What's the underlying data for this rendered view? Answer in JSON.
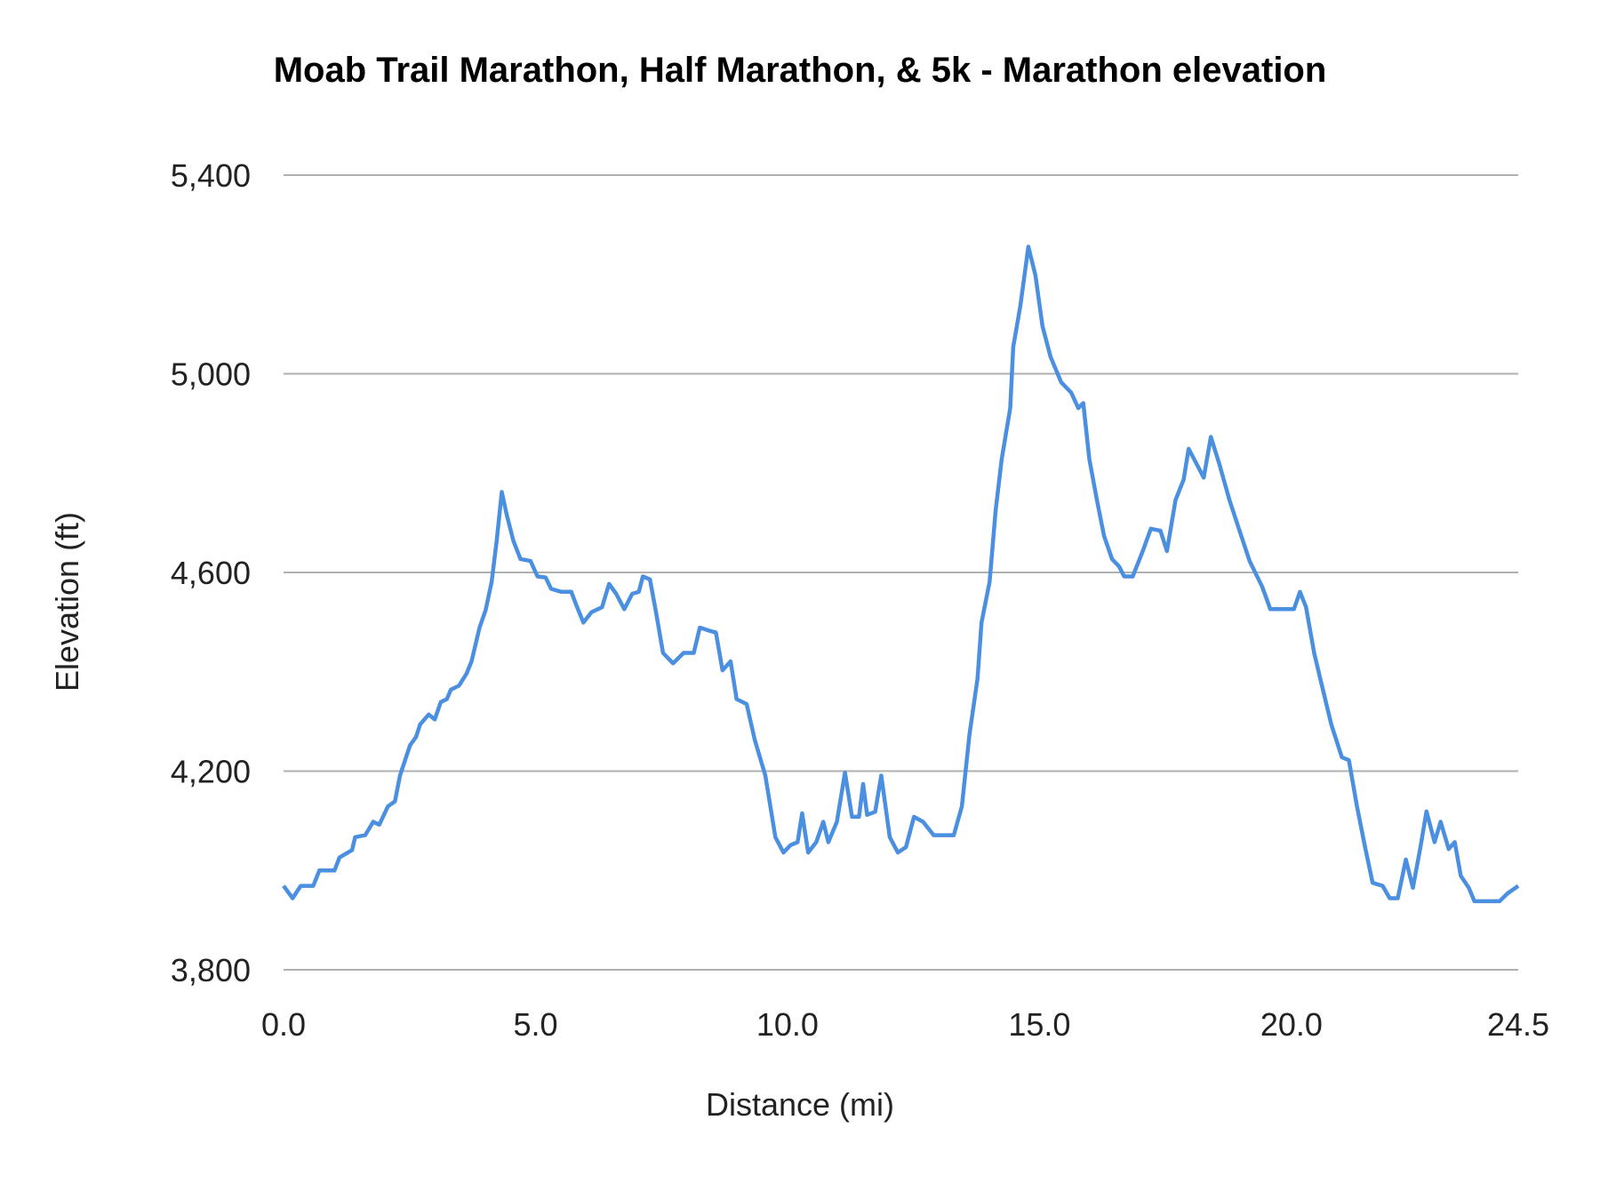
{
  "chart_data": {
    "type": "line",
    "title": "Moab Trail Marathon, Half Marathon, & 5k - Marathon elevation",
    "xlabel": "Distance (mi)",
    "ylabel": "Elevation (ft)",
    "xlim": [
      0,
      24.5
    ],
    "ylim": [
      3800,
      5400
    ],
    "x_ticks": [
      "0.0",
      "5.0",
      "10.0",
      "15.0",
      "20.0",
      "24.5"
    ],
    "x_tick_values": [
      0,
      5,
      10,
      15,
      20,
      24.5
    ],
    "y_ticks": [
      "3,800",
      "4,200",
      "4,600",
      "5,000",
      "5,400"
    ],
    "y_tick_values": [
      3800,
      4200,
      4600,
      5000,
      5400
    ],
    "grid": "horizontal",
    "legend": "none",
    "line_color": "#4a8fe0",
    "series": [
      {
        "x": [
          0,
          0.18,
          0.34,
          0.59,
          0.71,
          1.01,
          1.11,
          1.36,
          1.42,
          1.62,
          1.78,
          1.9,
          2.07,
          2.21,
          2.31,
          2.51,
          2.63,
          2.71,
          2.88,
          3.0,
          3.12,
          3.24,
          3.32,
          3.48,
          3.63,
          3.73,
          3.89,
          4.01,
          4.13,
          4.23,
          4.33,
          4.43,
          4.56,
          4.7,
          4.9,
          5.04,
          5.2,
          5.31,
          5.51,
          5.71,
          5.81,
          5.95,
          6.11,
          6.32,
          6.46,
          6.6,
          6.76,
          6.92,
          7.05,
          7.13,
          7.27,
          7.39,
          7.53,
          7.73,
          7.94,
          8.14,
          8.26,
          8.44,
          8.58,
          8.71,
          8.87,
          8.99,
          9.19,
          9.35,
          9.56,
          9.76,
          9.92,
          10.06,
          10.2,
          10.29,
          10.41,
          10.57,
          10.71,
          10.81,
          10.98,
          11.14,
          11.28,
          11.42,
          11.5,
          11.58,
          11.74,
          11.86,
          12.03,
          12.19,
          12.35,
          12.51,
          12.69,
          12.9,
          13.3,
          13.46,
          13.61,
          13.77,
          13.85,
          14.01,
          14.13,
          14.25,
          14.42,
          14.48,
          14.62,
          14.78,
          14.92,
          15.06,
          15.22,
          15.43,
          15.63,
          15.77,
          15.87,
          15.99,
          16.14,
          16.28,
          16.44,
          16.58,
          16.68,
          16.85,
          17.05,
          17.21,
          17.4,
          17.53,
          17.7,
          17.86,
          17.96,
          18.1,
          18.26,
          18.4,
          18.57,
          18.77,
          18.97,
          19.17,
          19.42,
          19.58,
          20.05,
          20.17,
          20.29,
          20.45,
          20.62,
          20.79,
          21.0,
          21.14,
          21.3,
          21.46,
          21.61,
          21.81,
          21.95,
          22.11,
          22.27,
          22.41,
          22.56,
          22.68,
          22.84,
          22.96,
          23.12,
          23.24,
          23.36,
          23.52,
          23.63,
          24.13,
          24.29,
          24.5
        ],
        "y": [
          3969,
          3944,
          3969,
          3969,
          4000,
          4000,
          4026,
          4041,
          4067,
          4071,
          4098,
          4092,
          4129,
          4139,
          4191,
          4252,
          4269,
          4294,
          4314,
          4304,
          4339,
          4345,
          4364,
          4372,
          4396,
          4421,
          4489,
          4524,
          4581,
          4664,
          4762,
          4715,
          4664,
          4627,
          4623,
          4592,
          4590,
          4567,
          4561,
          4561,
          4534,
          4499,
          4520,
          4530,
          4577,
          4557,
          4526,
          4557,
          4561,
          4592,
          4586,
          4520,
          4438,
          4417,
          4438,
          4438,
          4489,
          4483,
          4479,
          4403,
          4421,
          4345,
          4335,
          4263,
          4191,
          4067,
          4036,
          4051,
          4057,
          4115,
          4036,
          4057,
          4098,
          4057,
          4098,
          4197,
          4108,
          4108,
          4174,
          4112,
          4118,
          4191,
          4067,
          4036,
          4047,
          4108,
          4098,
          4071,
          4071,
          4129,
          4273,
          4386,
          4499,
          4581,
          4725,
          4828,
          4931,
          5054,
          5137,
          5256,
          5198,
          5096,
          5034,
          4983,
          4962,
          4931,
          4941,
          4828,
          4746,
          4674,
          4627,
          4612,
          4592,
          4592,
          4643,
          4688,
          4684,
          4643,
          4746,
          4787,
          4849,
          4822,
          4791,
          4873,
          4818,
          4746,
          4684,
          4623,
          4571,
          4526,
          4526,
          4561,
          4530,
          4438,
          4366,
          4294,
          4228,
          4222,
          4129,
          4047,
          3975,
          3969,
          3944,
          3944,
          4022,
          3965,
          4047,
          4119,
          4057,
          4098,
          4043,
          4057,
          3989,
          3965,
          3938,
          3938,
          3954,
          3969
        ]
      }
    ]
  }
}
